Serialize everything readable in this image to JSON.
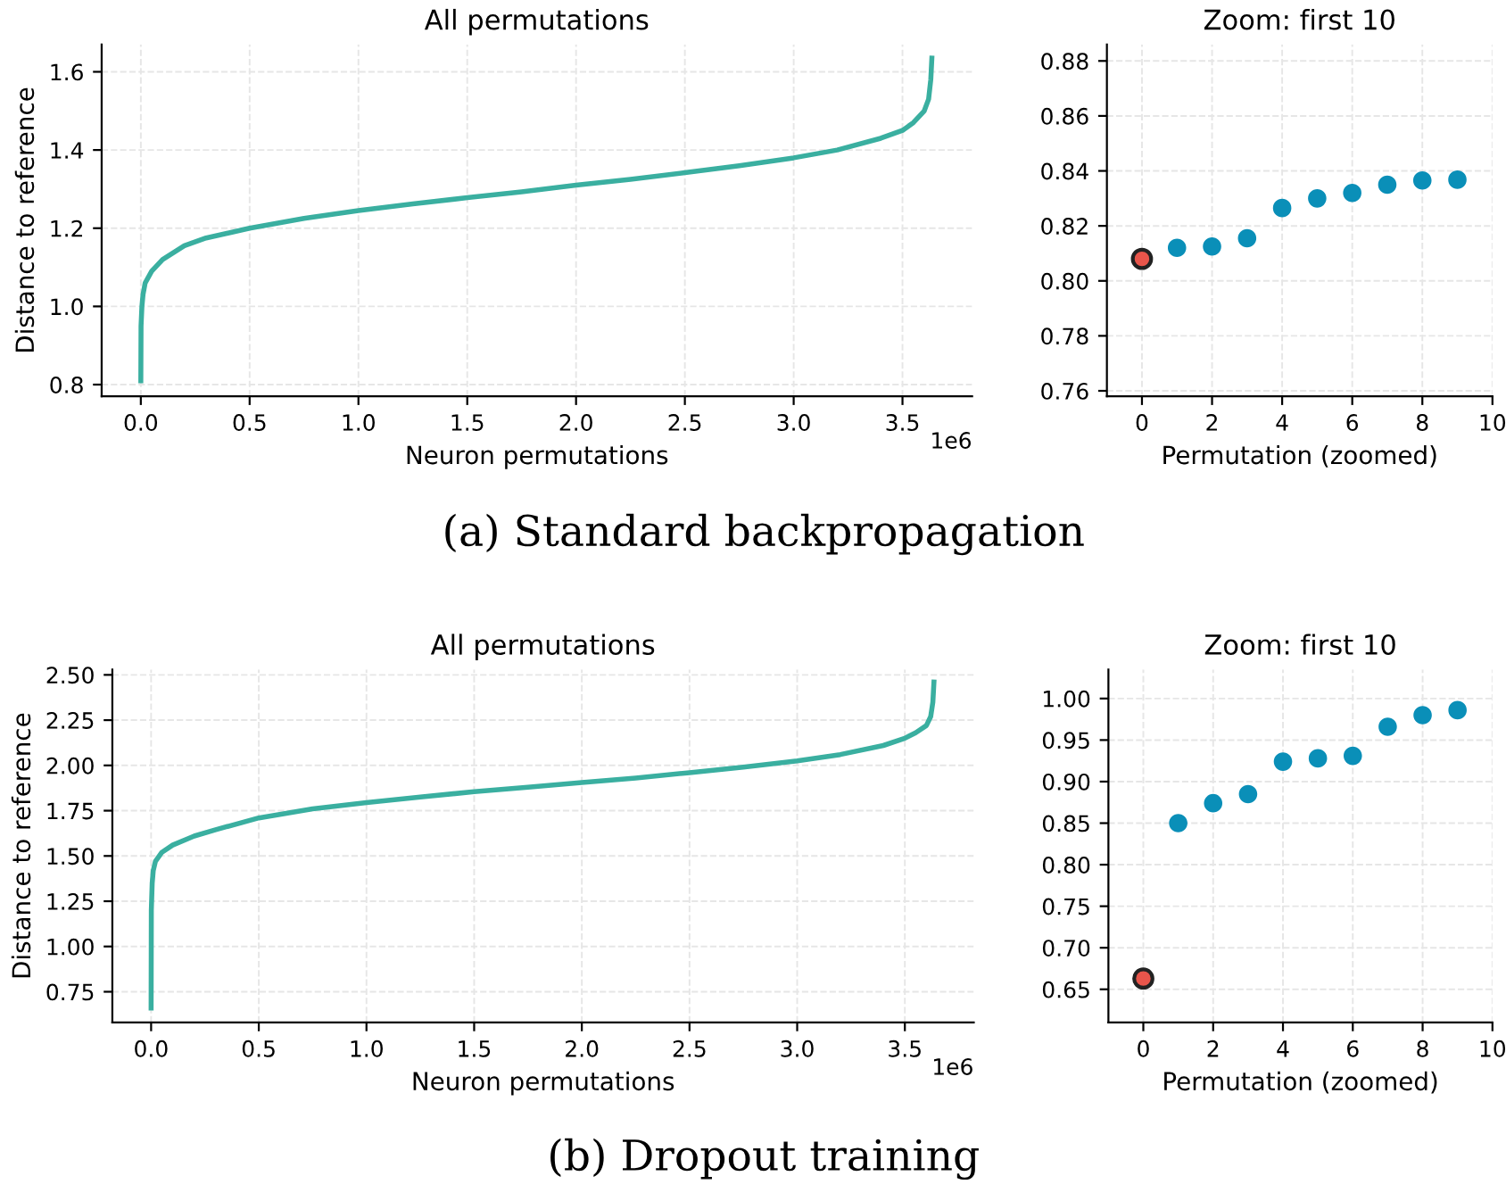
{
  "chart_data": [
    {
      "type": "line",
      "title": "All permutations",
      "xlabel": "Neuron permutations",
      "ylabel": "Distance to reference",
      "x": [
        0,
        0.001,
        0.005,
        0.01,
        0.02,
        0.05,
        0.1,
        0.2,
        0.3,
        0.5,
        0.75,
        1.0,
        1.25,
        1.5,
        1.75,
        2.0,
        2.25,
        2.5,
        2.75,
        3.0,
        3.2,
        3.4,
        3.5,
        3.55,
        3.6,
        3.62,
        3.63,
        3.635
      ],
      "series": [
        {
          "color": "#3aafa0",
          "values": [
            0.81,
            0.95,
            1.0,
            1.03,
            1.06,
            1.09,
            1.12,
            1.155,
            1.175,
            1.2,
            1.225,
            1.245,
            1.262,
            1.278,
            1.293,
            1.31,
            1.325,
            1.342,
            1.36,
            1.38,
            1.4,
            1.43,
            1.45,
            1.47,
            1.5,
            1.53,
            1.58,
            1.635
          ]
        }
      ],
      "xlim": [
        -0.18,
        3.82
      ],
      "ylim": [
        0.77,
        1.67
      ],
      "xticks": [
        {
          "value": 0,
          "label": "0.0"
        },
        0.5,
        {
          "value": 1,
          "label": "1.0"
        },
        1.5,
        {
          "value": 2,
          "label": "2.0"
        },
        2.5,
        {
          "value": 3,
          "label": "3.0"
        },
        3.5
      ],
      "yticks": [
        0.8,
        {
          "value": 1,
          "label": "1.0"
        },
        1.2,
        1.4,
        1.6
      ],
      "grid": true,
      "line_style": "solid",
      "marker": "none",
      "annotations": [
        "1e6",
        "(a) Standard backpropagation"
      ]
    },
    {
      "type": "scatter",
      "title": "Zoom: first 10",
      "xlabel": "Permutation (zoomed)",
      "series": [
        {
          "x": [
            0
          ],
          "color": "#e8554b",
          "values": [
            0.808
          ]
        },
        {
          "x": [
            1,
            2,
            3,
            4,
            5,
            6,
            7,
            8,
            9
          ],
          "color": "#0a8fb8",
          "values": [
            0.812,
            0.8125,
            0.8155,
            0.8265,
            0.83,
            0.832,
            0.835,
            0.8365,
            0.8368
          ]
        }
      ],
      "xlim": [
        -1,
        10
      ],
      "ylim": [
        0.758,
        0.886
      ],
      "xticks": [
        0,
        2,
        4,
        6,
        8,
        10
      ],
      "yticks": [
        {
          "value": 0.76,
          "label": "0.76"
        },
        {
          "value": 0.78,
          "label": "0.78"
        },
        {
          "value": 0.8,
          "label": "0.80"
        },
        {
          "value": 0.82,
          "label": "0.82"
        },
        {
          "value": 0.84,
          "label": "0.84"
        },
        {
          "value": 0.86,
          "label": "0.86"
        },
        {
          "value": 0.88,
          "label": "0.88"
        }
      ],
      "grid": true,
      "marker": "circle"
    },
    {
      "type": "line",
      "title": "All permutations",
      "xlabel": "Neuron permutations",
      "ylabel": "Distance to reference",
      "x": [
        0,
        0.001,
        0.005,
        0.01,
        0.02,
        0.05,
        0.1,
        0.2,
        0.3,
        0.5,
        0.75,
        1.0,
        1.25,
        1.5,
        1.75,
        2.0,
        2.25,
        2.5,
        2.75,
        3.0,
        3.2,
        3.4,
        3.5,
        3.55,
        3.6,
        3.62,
        3.63,
        3.635
      ],
      "series": [
        {
          "color": "#3aafa0",
          "values": [
            0.66,
            1.2,
            1.35,
            1.42,
            1.47,
            1.52,
            1.56,
            1.61,
            1.645,
            1.71,
            1.76,
            1.795,
            1.825,
            1.855,
            1.88,
            1.905,
            1.93,
            1.96,
            1.99,
            2.025,
            2.06,
            2.11,
            2.15,
            2.18,
            2.22,
            2.27,
            2.35,
            2.46
          ]
        }
      ],
      "xlim": [
        -0.18,
        3.82
      ],
      "ylim": [
        0.58,
        2.53
      ],
      "xticks": [
        {
          "value": 0,
          "label": "0.0"
        },
        0.5,
        {
          "value": 1,
          "label": "1.0"
        },
        1.5,
        {
          "value": 2,
          "label": "2.0"
        },
        2.5,
        {
          "value": 3,
          "label": "3.0"
        },
        3.5
      ],
      "yticks": [
        0.75,
        {
          "value": 1,
          "label": "1.00"
        },
        1.25,
        {
          "value": 1.5,
          "label": "1.50"
        },
        1.75,
        {
          "value": 2,
          "label": "2.00"
        },
        2.25,
        {
          "value": 2.5,
          "label": "2.50"
        }
      ],
      "grid": true,
      "line_style": "solid",
      "marker": "none",
      "annotations": [
        "1e6",
        "(b) Dropout training"
      ]
    },
    {
      "type": "scatter",
      "title": "Zoom: first 10",
      "xlabel": "Permutation (zoomed)",
      "series": [
        {
          "x": [
            0
          ],
          "color": "#e8554b",
          "values": [
            0.663
          ]
        },
        {
          "x": [
            1,
            2,
            3,
            4,
            5,
            6,
            7,
            8,
            9
          ],
          "color": "#0a8fb8",
          "values": [
            0.85,
            0.874,
            0.885,
            0.924,
            0.928,
            0.931,
            0.966,
            0.98,
            0.986
          ]
        }
      ],
      "xlim": [
        -1,
        10
      ],
      "ylim": [
        0.61,
        1.035
      ],
      "xticks": [
        0,
        2,
        4,
        6,
        8,
        10
      ],
      "yticks": [
        0.65,
        {
          "value": 0.7,
          "label": "0.70"
        },
        0.75,
        {
          "value": 0.8,
          "label": "0.80"
        },
        0.85,
        {
          "value": 0.9,
          "label": "0.90"
        },
        0.95,
        {
          "value": 1,
          "label": "1.00"
        }
      ],
      "grid": true,
      "marker": "circle"
    }
  ]
}
